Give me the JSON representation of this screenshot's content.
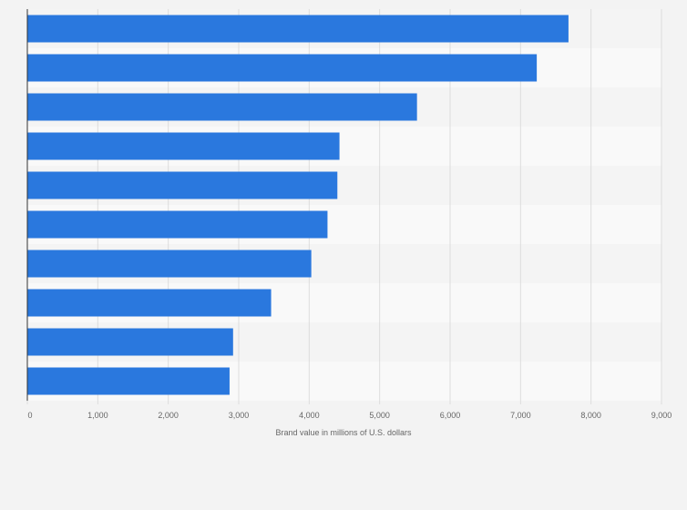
{
  "chart_data": {
    "type": "bar",
    "orientation": "horizontal",
    "title": "",
    "xlabel": "Brand value in millions of U.S. dollars",
    "ylabel": "",
    "xlim": [
      0,
      9000
    ],
    "x_ticks": [
      0,
      1000,
      2000,
      3000,
      4000,
      5000,
      6000,
      7000,
      8000,
      9000
    ],
    "x_tick_labels": [
      "0",
      "1,000",
      "2,000",
      "3,000",
      "4,000",
      "5,000",
      "6,000",
      "7,000",
      "8,000",
      "9,000"
    ],
    "categories": [
      "",
      "",
      "",
      "",
      "",
      "",
      "",
      "",
      "",
      ""
    ],
    "values": [
      7680,
      7230,
      5530,
      4430,
      4400,
      4260,
      4030,
      3460,
      2920,
      2870
    ],
    "grid": true,
    "legend": "none"
  },
  "colors": {
    "bar": "#2a78de",
    "background": "#f3f3f3",
    "band_light": "#f9f9f9",
    "band_dark": "#f4f4f4",
    "grid": "#dddddd",
    "axis": "#333333"
  }
}
